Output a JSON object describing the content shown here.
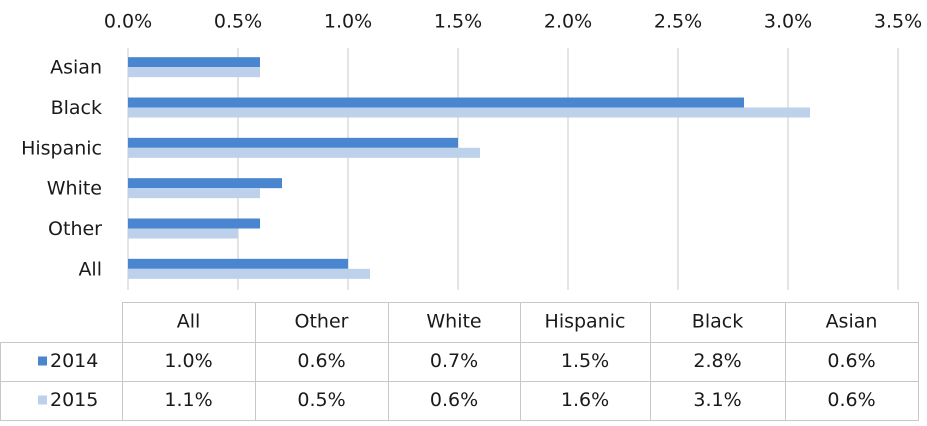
{
  "chart_data": {
    "type": "hbar",
    "categories": [
      "Asian",
      "Black",
      "Hispanic",
      "White",
      "Other",
      "All"
    ],
    "series": [
      {
        "name": "2014",
        "color": "#4a86d0",
        "values": [
          0.6,
          2.8,
          1.5,
          0.7,
          0.6,
          1.0
        ],
        "value_labels": [
          "0.6%",
          "2.8%",
          "1.5%",
          "0.7%",
          "0.6%",
          "1.0%"
        ]
      },
      {
        "name": "2015",
        "color": "#bdd1ea",
        "values": [
          0.6,
          3.1,
          1.6,
          0.6,
          0.5,
          1.1
        ],
        "value_labels": [
          "0.6%",
          "3.1%",
          "1.6%",
          "0.6%",
          "0.5%",
          "1.1%"
        ]
      }
    ],
    "xlim": [
      0,
      3.5
    ],
    "xticks": [
      {
        "value": 0,
        "label": "0.0%"
      },
      {
        "value": 0.5,
        "label": "0.5%"
      },
      {
        "value": 1,
        "label": "1.0%"
      },
      {
        "value": 1.5,
        "label": "1.5%"
      },
      {
        "value": 2,
        "label": "2.0%"
      },
      {
        "value": 2.5,
        "label": "2.5%"
      },
      {
        "value": 3,
        "label": "3.0%"
      },
      {
        "value": 3.5,
        "label": "3.5%"
      }
    ],
    "grid": true
  }
}
